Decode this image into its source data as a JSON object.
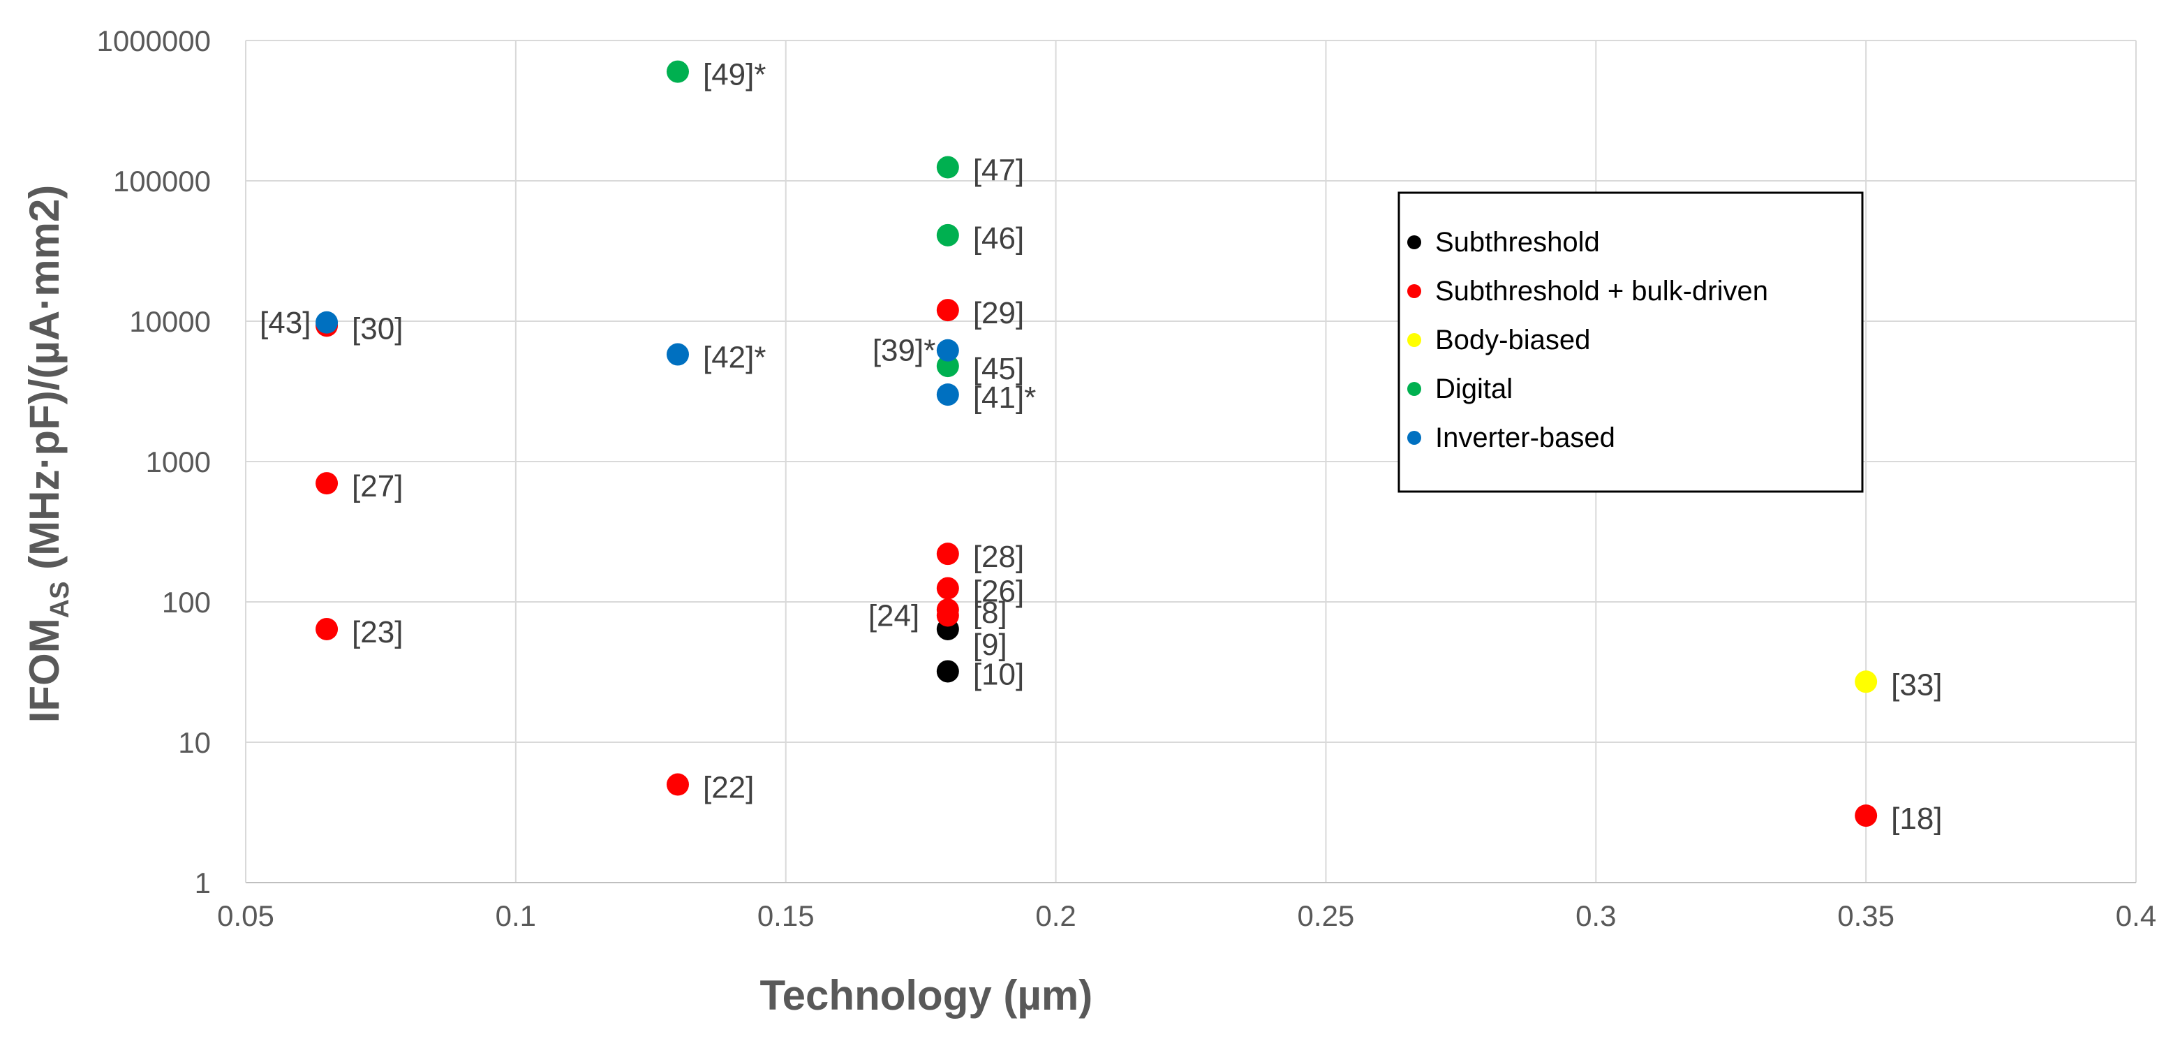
{
  "chart_data": {
    "type": "scatter",
    "title": "",
    "xlabel": "Technology (µm)",
    "ylabel_main": "IFOM",
    "ylabel_sub": "AS",
    "ylabel_rest": " (MHz·pF)/(µA·mm2)",
    "xlim": [
      0.05,
      0.4
    ],
    "ylim": [
      1,
      1000000
    ],
    "yscale": "log",
    "grid": true,
    "x_ticks": [
      "0.05",
      "0.1",
      "0.15",
      "0.2",
      "0.25",
      "0.3",
      "0.35",
      "0.4"
    ],
    "y_ticks": [
      "1",
      "10",
      "100",
      "1000",
      "10000",
      "100000",
      "1000000"
    ],
    "legend_position": "center-right",
    "series": [
      {
        "name": "Subthreshold",
        "color": "#000000",
        "points": [
          {
            "x": 0.18,
            "y": 64,
            "label": "[9]"
          },
          {
            "x": 0.18,
            "y": 32,
            "label": "[10]"
          }
        ]
      },
      {
        "name": "Subthreshold + bulk-driven",
        "color": "#ff0000",
        "points": [
          {
            "x": 0.065,
            "y": 9300,
            "label": "[30]"
          },
          {
            "x": 0.065,
            "y": 700,
            "label": "[27]"
          },
          {
            "x": 0.065,
            "y": 64,
            "label": "[23]"
          },
          {
            "x": 0.13,
            "y": 5,
            "label": "[22]"
          },
          {
            "x": 0.18,
            "y": 12000,
            "label": "[29]"
          },
          {
            "x": 0.18,
            "y": 220,
            "label": "[28]"
          },
          {
            "x": 0.18,
            "y": 125,
            "label": "[26]"
          },
          {
            "x": 0.18,
            "y": 88,
            "label": "[8]"
          },
          {
            "x": 0.18,
            "y": 80,
            "label": "[24]"
          },
          {
            "x": 0.35,
            "y": 3,
            "label": "[18]"
          }
        ]
      },
      {
        "name": "Body-biased",
        "color": "#ffff00",
        "points": [
          {
            "x": 0.35,
            "y": 27,
            "label": "[33]"
          }
        ]
      },
      {
        "name": "Digital",
        "color": "#00b050",
        "points": [
          {
            "x": 0.13,
            "y": 600000,
            "label": "[49]*"
          },
          {
            "x": 0.18,
            "y": 125000,
            "label": "[47]"
          },
          {
            "x": 0.18,
            "y": 41000,
            "label": "[46]"
          },
          {
            "x": 0.18,
            "y": 4800,
            "label": "[45]"
          }
        ]
      },
      {
        "name": "Inverter-based",
        "color": "#0070c0",
        "points": [
          {
            "x": 0.065,
            "y": 9800,
            "label": "[43]"
          },
          {
            "x": 0.13,
            "y": 5800,
            "label": "[42]*"
          },
          {
            "x": 0.18,
            "y": 6200,
            "label": "[39]*"
          },
          {
            "x": 0.18,
            "y": 3000,
            "label": "[41]*"
          }
        ]
      }
    ]
  }
}
